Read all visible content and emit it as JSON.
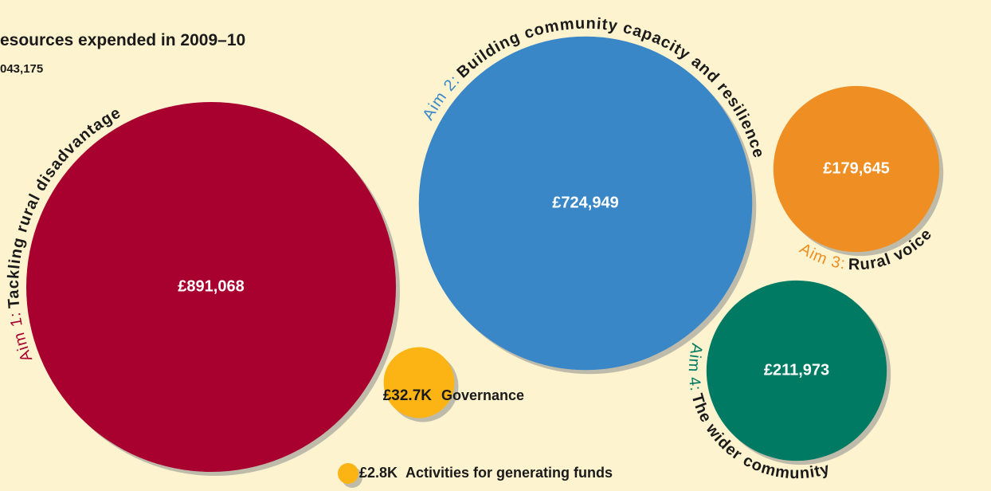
{
  "chart_data": {
    "type": "bubble",
    "title": "esources expended in 2009–10",
    "subtitle": "043,175",
    "prefixes": [
      "Aim 1:",
      "Aim 2:",
      "Aim 3:",
      "Aim 4:",
      null,
      null
    ],
    "categories": [
      "Tackling rural disadvantage",
      "Building community capacity and resilience",
      "Rural voice",
      "The wider community",
      "Governance",
      "Activities for generating funds"
    ],
    "values": [
      891068,
      724949,
      179645,
      211973,
      32700,
      2800
    ],
    "value_labels": [
      "£891,068",
      "£724,949",
      "£179,645",
      "£211,973",
      "£32.7K",
      "£2.8K"
    ],
    "colors": [
      "#a8002f",
      "#3a87c8",
      "#ef8e22",
      "#007a63",
      "#fbb414",
      "#fbb414"
    ]
  }
}
